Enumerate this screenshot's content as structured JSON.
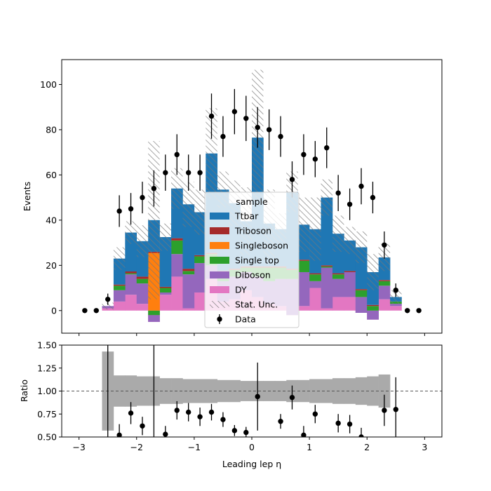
{
  "chart_data": [
    {
      "type": "stacked-step-histogram",
      "ylabel": "Events",
      "xlim": [
        -3.3,
        3.3
      ],
      "ylim": [
        -10,
        111
      ],
      "yticks": [
        0,
        20,
        40,
        60,
        80,
        100
      ],
      "bin_edges": [
        -2.6,
        -2.4,
        -2.2,
        -2.0,
        -1.8,
        -1.6,
        -1.4,
        -1.2,
        -1.0,
        -0.8,
        -0.6,
        -0.4,
        -0.2,
        0.0,
        0.2,
        0.4,
        0.6,
        0.8,
        1.0,
        1.2,
        1.4,
        1.6,
        1.8,
        2.0,
        2.2,
        2.4,
        2.6
      ],
      "legend": {
        "title": "sample",
        "placement": "center",
        "entries": [
          {
            "label": "Ttbar",
            "kind": "patch",
            "color": "#1f77b4"
          },
          {
            "label": "Triboson",
            "kind": "patch",
            "color": "#a52a2a"
          },
          {
            "label": "Singleboson",
            "kind": "patch",
            "color": "#ff7f0e"
          },
          {
            "label": "Single top",
            "kind": "patch",
            "color": "#2ca02c"
          },
          {
            "label": "Diboson",
            "kind": "patch",
            "color": "#9467bd"
          },
          {
            "label": "DY",
            "kind": "patch",
            "color": "#e377c2"
          },
          {
            "label": "Stat. Unc.",
            "kind": "hatch",
            "color": "#888888"
          },
          {
            "label": "Data",
            "kind": "errorbar",
            "color": "#000000"
          }
        ]
      },
      "stack_order_bottom_to_top": [
        "DY",
        "Diboson",
        "Single top",
        "Singleboson",
        "Triboson",
        "Ttbar"
      ],
      "series": [
        {
          "name": "DY",
          "color": "#e377c2",
          "values": [
            1,
            4,
            7,
            3,
            -5,
            7,
            15,
            1,
            8,
            14,
            4,
            5,
            9,
            6,
            3,
            2,
            -2,
            2,
            10,
            1,
            6,
            6,
            -1,
            -4,
            5,
            2
          ]
        },
        {
          "name": "Diboson",
          "color": "#9467bd",
          "values": [
            1,
            5,
            9,
            9,
            3,
            1,
            10,
            15,
            13,
            6,
            9,
            10,
            8,
            9,
            10,
            12,
            16,
            15,
            3,
            18,
            8,
            11,
            7,
            4,
            6,
            1
          ]
        },
        {
          "name": "Single top",
          "color": "#2ca02c",
          "values": [
            0,
            2,
            0.5,
            2,
            2,
            2,
            6,
            1.5,
            3,
            5,
            4,
            3,
            2,
            4,
            6,
            5,
            4,
            5,
            3,
            0.5,
            2,
            0,
            3,
            2,
            2,
            1
          ]
        },
        {
          "name": "Singleboson",
          "color": "#ff7f0e",
          "values": [
            0,
            0,
            0,
            0,
            25.5,
            0,
            0,
            0,
            0,
            0,
            0,
            0,
            0,
            0,
            0,
            0,
            0,
            0,
            0,
            0,
            0,
            0,
            0,
            0,
            0,
            0
          ]
        },
        {
          "name": "Triboson",
          "color": "#a52a2a",
          "values": [
            0,
            0.5,
            0.8,
            1,
            0.5,
            0.5,
            1,
            1,
            0.5,
            0.5,
            0.5,
            0.5,
            0.5,
            0.5,
            0.5,
            0.5,
            0.5,
            0.5,
            0.5,
            0.5,
            0.5,
            0.5,
            0.5,
            0.5,
            0.5,
            0
          ]
        },
        {
          "name": "Ttbar",
          "color": "#1f77b4",
          "values": [
            0,
            11.5,
            17.2,
            15.7,
            14,
            22,
            22,
            28.5,
            19,
            44,
            36,
            29,
            20,
            57,
            19,
            16.5,
            34,
            15.5,
            19.5,
            30,
            17.5,
            13.5,
            18.5,
            14.5,
            10,
            2
          ]
        }
      ],
      "stat_unc": [
        1.5,
        5,
        5,
        7,
        35,
        6,
        9,
        10,
        10,
        20,
        8,
        10,
        15,
        30,
        15,
        7,
        9,
        12,
        14,
        8,
        8,
        6,
        7,
        8,
        6,
        3
      ],
      "data_points": [
        {
          "x": -2.9,
          "y": 0,
          "err": 0
        },
        {
          "x": -2.7,
          "y": 0,
          "err": 0
        },
        {
          "x": -2.5,
          "y": 5,
          "err": 2.5
        },
        {
          "x": -2.3,
          "y": 44,
          "err": 7
        },
        {
          "x": -2.1,
          "y": 45,
          "err": 7
        },
        {
          "x": -1.9,
          "y": 50,
          "err": 7
        },
        {
          "x": -1.7,
          "y": 54,
          "err": 8
        },
        {
          "x": -1.5,
          "y": 61,
          "err": 8
        },
        {
          "x": -1.3,
          "y": 69,
          "err": 9
        },
        {
          "x": -1.1,
          "y": 61,
          "err": 8
        },
        {
          "x": -0.9,
          "y": 61,
          "err": 8
        },
        {
          "x": -0.7,
          "y": 86,
          "err": 10
        },
        {
          "x": -0.5,
          "y": 77,
          "err": 9
        },
        {
          "x": -0.3,
          "y": 88,
          "err": 10
        },
        {
          "x": -0.1,
          "y": 85,
          "err": 10
        },
        {
          "x": 0.1,
          "y": 81,
          "err": 9
        },
        {
          "x": 0.3,
          "y": 80,
          "err": 9
        },
        {
          "x": 0.5,
          "y": 77,
          "err": 9
        },
        {
          "x": 0.7,
          "y": 58,
          "err": 8
        },
        {
          "x": 0.9,
          "y": 69,
          "err": 9
        },
        {
          "x": 1.1,
          "y": 67,
          "err": 8
        },
        {
          "x": 1.3,
          "y": 72,
          "err": 9
        },
        {
          "x": 1.5,
          "y": 52,
          "err": 8
        },
        {
          "x": 1.7,
          "y": 47,
          "err": 7
        },
        {
          "x": 1.9,
          "y": 55,
          "err": 8
        },
        {
          "x": 2.1,
          "y": 50,
          "err": 7
        },
        {
          "x": 2.3,
          "y": 29,
          "err": 6
        },
        {
          "x": 2.5,
          "y": 9,
          "err": 3
        },
        {
          "x": 2.7,
          "y": 0,
          "err": 0
        },
        {
          "x": 2.9,
          "y": 0,
          "err": 0
        }
      ]
    },
    {
      "type": "ratio",
      "xlabel": "Leading lep η",
      "ylabel": "Ratio",
      "xlim": [
        -3.3,
        3.3
      ],
      "ylim": [
        0.5,
        1.5
      ],
      "xticks": [
        -3,
        -2,
        -1,
        0,
        1,
        2,
        3
      ],
      "yticks": [
        0.5,
        0.75,
        1.0,
        1.25,
        1.5
      ],
      "ytick_labels": [
        "0.50",
        "0.75",
        "1.00",
        "1.25",
        "1.50"
      ],
      "reference_line": 1.0,
      "band_color": "#aaaaaa",
      "band_edges": [
        -2.6,
        -2.4,
        -2.2,
        -2.0,
        -1.8,
        -1.6,
        -1.4,
        -1.2,
        -1.0,
        -0.8,
        -0.6,
        -0.4,
        -0.2,
        0.0,
        0.2,
        0.4,
        0.6,
        0.8,
        1.0,
        1.2,
        1.4,
        1.6,
        1.8,
        2.0,
        2.2,
        2.4
      ],
      "band_halfwidth": [
        0.43,
        0.17,
        0.17,
        0.16,
        0.16,
        0.14,
        0.14,
        0.13,
        0.13,
        0.13,
        0.12,
        0.12,
        0.11,
        0.11,
        0.11,
        0.11,
        0.12,
        0.12,
        0.13,
        0.13,
        0.14,
        0.14,
        0.15,
        0.16,
        0.18,
        0.22
      ],
      "points": [
        {
          "x": -2.5,
          "y": 1.0,
          "err": 0.5,
          "marker": false
        },
        {
          "x": -2.3,
          "y": 0.52,
          "err": 0.12
        },
        {
          "x": -2.1,
          "y": 0.76,
          "err": 0.12
        },
        {
          "x": -1.9,
          "y": 0.62,
          "err": 0.1
        },
        {
          "x": -1.7,
          "y": 1.05,
          "err": 0.6,
          "marker": false
        },
        {
          "x": -1.5,
          "y": 0.53,
          "err": 0.09
        },
        {
          "x": -1.3,
          "y": 0.79,
          "err": 0.1
        },
        {
          "x": -1.1,
          "y": 0.77,
          "err": 0.1
        },
        {
          "x": -0.9,
          "y": 0.72,
          "err": 0.1
        },
        {
          "x": -0.7,
          "y": 0.77,
          "err": 0.09
        },
        {
          "x": -0.5,
          "y": 0.69,
          "err": 0.08
        },
        {
          "x": -0.3,
          "y": 0.57,
          "err": 0.06
        },
        {
          "x": -0.1,
          "y": 0.55,
          "err": 0.06
        },
        {
          "x": 0.1,
          "y": 0.94,
          "err": 0.37
        },
        {
          "x": 0.5,
          "y": 0.67,
          "err": 0.08
        },
        {
          "x": 0.7,
          "y": 0.93,
          "err": 0.13
        },
        {
          "x": 0.9,
          "y": 0.52,
          "err": 0.1
        },
        {
          "x": 1.1,
          "y": 0.75,
          "err": 0.1
        },
        {
          "x": 1.5,
          "y": 0.65,
          "err": 0.1
        },
        {
          "x": 1.7,
          "y": 0.64,
          "err": 0.1
        },
        {
          "x": 1.9,
          "y": 0.5,
          "err": 0.1
        },
        {
          "x": 2.3,
          "y": 0.79,
          "err": 0.17
        },
        {
          "x": 2.5,
          "y": 0.8,
          "err": 0.35
        }
      ]
    }
  ]
}
